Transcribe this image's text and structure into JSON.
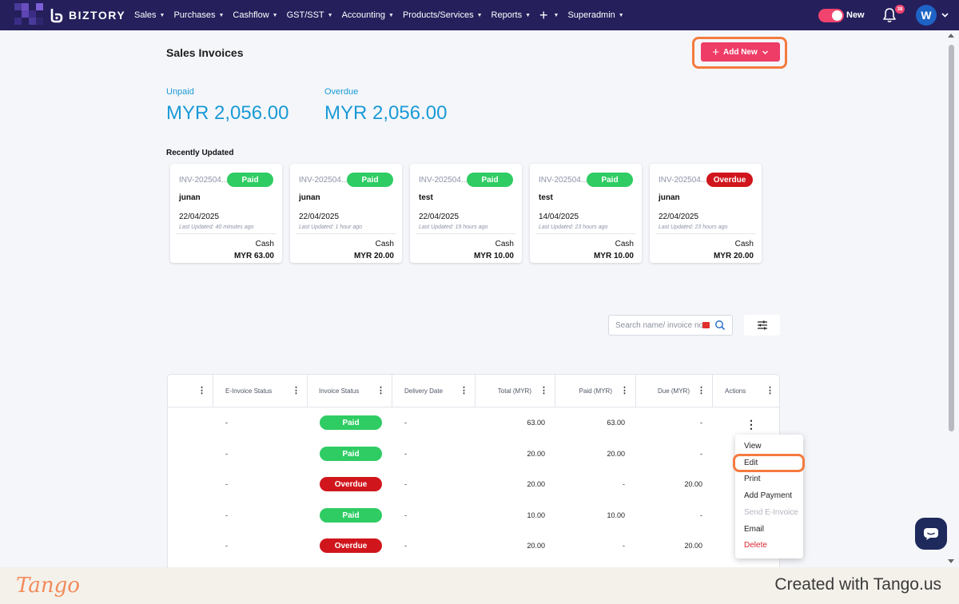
{
  "nav": {
    "brand": "BIZTORY",
    "menu": [
      {
        "label": "Sales"
      },
      {
        "label": "Purchases"
      },
      {
        "label": "Cashflow"
      },
      {
        "label": "GST/SST"
      },
      {
        "label": "Accounting"
      },
      {
        "label": "Products/Services"
      },
      {
        "label": "Reports"
      },
      {
        "label": "+"
      },
      {
        "label": "Superadmin"
      }
    ],
    "toggle_label": "New",
    "notification_count": "38",
    "avatar_initial": "W"
  },
  "page": {
    "title": "Sales Invoices",
    "add_button": "Add New"
  },
  "stats": {
    "unpaid_label": "Unpaid",
    "unpaid_value": "MYR 2,056.00",
    "overdue_label": "Overdue",
    "overdue_value": "MYR 2,056.00"
  },
  "recent": {
    "title": "Recently Updated",
    "cards": [
      {
        "invoice": "INV-202504...",
        "status": "Paid",
        "customer": "junan",
        "date": "22/04/2025",
        "updated": "Last Updated: 40 minutes ago",
        "method": "Cash",
        "amount": "MYR 63.00"
      },
      {
        "invoice": "INV-202504...",
        "status": "Paid",
        "customer": "junan",
        "date": "22/04/2025",
        "updated": "Last Updated: 1 hour ago",
        "method": "Cash",
        "amount": "MYR 20.00"
      },
      {
        "invoice": "INV-202504...",
        "status": "Paid",
        "customer": "test",
        "date": "22/04/2025",
        "updated": "Last Updated: 19 hours ago",
        "method": "Cash",
        "amount": "MYR 10.00"
      },
      {
        "invoice": "INV-202504...",
        "status": "Paid",
        "customer": "test",
        "date": "14/04/2025",
        "updated": "Last Updated: 23 hours ago",
        "method": "Cash",
        "amount": "MYR 10.00"
      },
      {
        "invoice": "INV-202504...",
        "status": "Overdue",
        "customer": "junan",
        "date": "22/04/2025",
        "updated": "Last Updated: 23 hours ago",
        "method": "Cash",
        "amount": "MYR 20.00"
      }
    ]
  },
  "search": {
    "placeholder": "Search name/ invoice no."
  },
  "table": {
    "headers": [
      "E-Invoice Status",
      "Invoice Status",
      "Delivery Date",
      "Total (MYR)",
      "Paid (MYR)",
      "Due (MYR)",
      "Actions"
    ],
    "rows": [
      {
        "einvoice": "-",
        "status": "Paid",
        "delivery": "-",
        "total": "63.00",
        "paid": "63.00",
        "due": "-"
      },
      {
        "einvoice": "-",
        "status": "Paid",
        "delivery": "-",
        "total": "20.00",
        "paid": "20.00",
        "due": "-"
      },
      {
        "einvoice": "-",
        "status": "Overdue",
        "delivery": "-",
        "total": "20.00",
        "paid": "-",
        "due": "20.00"
      },
      {
        "einvoice": "-",
        "status": "Paid",
        "delivery": "-",
        "total": "10.00",
        "paid": "10.00",
        "due": "-"
      },
      {
        "einvoice": "-",
        "status": "Overdue",
        "delivery": "-",
        "total": "20.00",
        "paid": "-",
        "due": "20.00"
      }
    ]
  },
  "actions_menu": {
    "items": [
      {
        "label": "View",
        "state": "normal"
      },
      {
        "label": "Edit",
        "state": "normal"
      },
      {
        "label": "Print",
        "state": "normal"
      },
      {
        "label": "Add Payment",
        "state": "normal"
      },
      {
        "label": "Send E-Invoice",
        "state": "disabled"
      },
      {
        "label": "Email",
        "state": "normal"
      },
      {
        "label": "Delete",
        "state": "danger"
      }
    ]
  },
  "footer": {
    "logo": "Tango",
    "credit": "Created with Tango.us"
  },
  "colors": {
    "nav_bg": "#251f5c",
    "accent": "#ee3d67",
    "stat_blue": "#1a9ad6",
    "paid": "#2ecc63",
    "overdue": "#d0161c",
    "highlight": "#f47b3f"
  }
}
